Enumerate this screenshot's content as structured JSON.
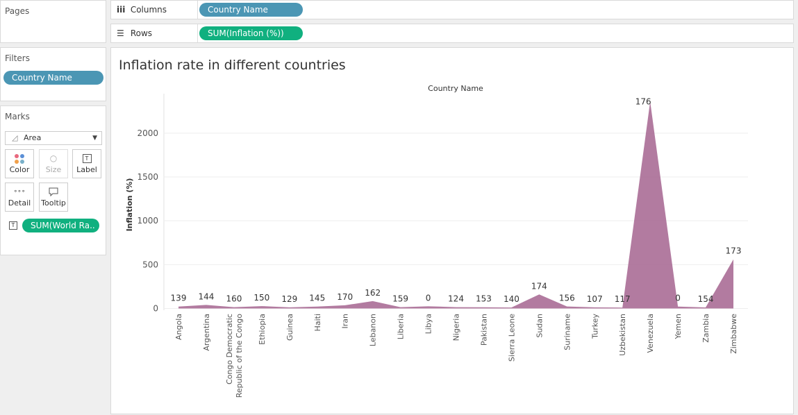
{
  "pages": {
    "title": "Pages"
  },
  "filters": {
    "title": "Filters",
    "pills": [
      "Country Name"
    ]
  },
  "marks": {
    "title": "Marks",
    "type": "Area",
    "buttons": {
      "color": "Color",
      "size": "Size",
      "label": "Label",
      "detail": "Detail",
      "tooltip": "Tooltip"
    },
    "label_pill": "SUM(World Ra.."
  },
  "columns": {
    "label": "Columns",
    "pill": "Country Name"
  },
  "rows": {
    "label": "Rows",
    "pill": "SUM(Inflation (%))"
  },
  "colors": {
    "blue_pill": "#4b96b4",
    "green_pill": "#10b07f",
    "area": "#a5648f"
  },
  "chart_data": {
    "type": "area",
    "title": "Inflation rate in different countries",
    "header": "Country Name",
    "ylabel": "Inflation (%)",
    "yticks": [
      0,
      500,
      1000,
      1500,
      2000
    ],
    "ylim": [
      -20,
      2450
    ],
    "grid": true,
    "categories": [
      "Angola",
      "Argentina",
      "Congo Democratic Republic of the Congo",
      "Ethiopia",
      "Guinea",
      "Haiti",
      "Iran",
      "Lebanon",
      "Liberia",
      "Libya",
      "Nigeria",
      "Pakistan",
      "Sierra Leone",
      "Sudan",
      "Suriname",
      "Turkey",
      "Uzbekistan",
      "Venezuela",
      "Yemen",
      "Zambia",
      "Zimbabwe"
    ],
    "category_lines": [
      [
        "Angola"
      ],
      [
        "Argentina"
      ],
      [
        "Congo Democratic",
        "Republic of the Congo"
      ],
      [
        "Ethiopia"
      ],
      [
        "Guinea"
      ],
      [
        "Haiti"
      ],
      [
        "Iran"
      ],
      [
        "Lebanon"
      ],
      [
        "Liberia"
      ],
      [
        "Libya"
      ],
      [
        "Nigeria"
      ],
      [
        "Pakistan"
      ],
      [
        "Sierra Leone"
      ],
      [
        "Sudan"
      ],
      [
        "Suriname"
      ],
      [
        "Turkey"
      ],
      [
        "Uzbekistan"
      ],
      [
        "Venezuela"
      ],
      [
        "Yemen"
      ],
      [
        "Zambia"
      ],
      [
        "Zimbabwe"
      ]
    ],
    "values": [
      22,
      40,
      15,
      27,
      13,
      22,
      36,
      84,
      15,
      25,
      15,
      14,
      11,
      160,
      23,
      13,
      10,
      2360,
      22,
      12,
      560
    ],
    "labels": [
      "139",
      "144",
      "160",
      "150",
      "129",
      "145",
      "170",
      "162",
      "159",
      "0",
      "124",
      "153",
      "140",
      "174",
      "156",
      "107",
      "117",
      "176",
      "0",
      "154",
      "173"
    ]
  }
}
